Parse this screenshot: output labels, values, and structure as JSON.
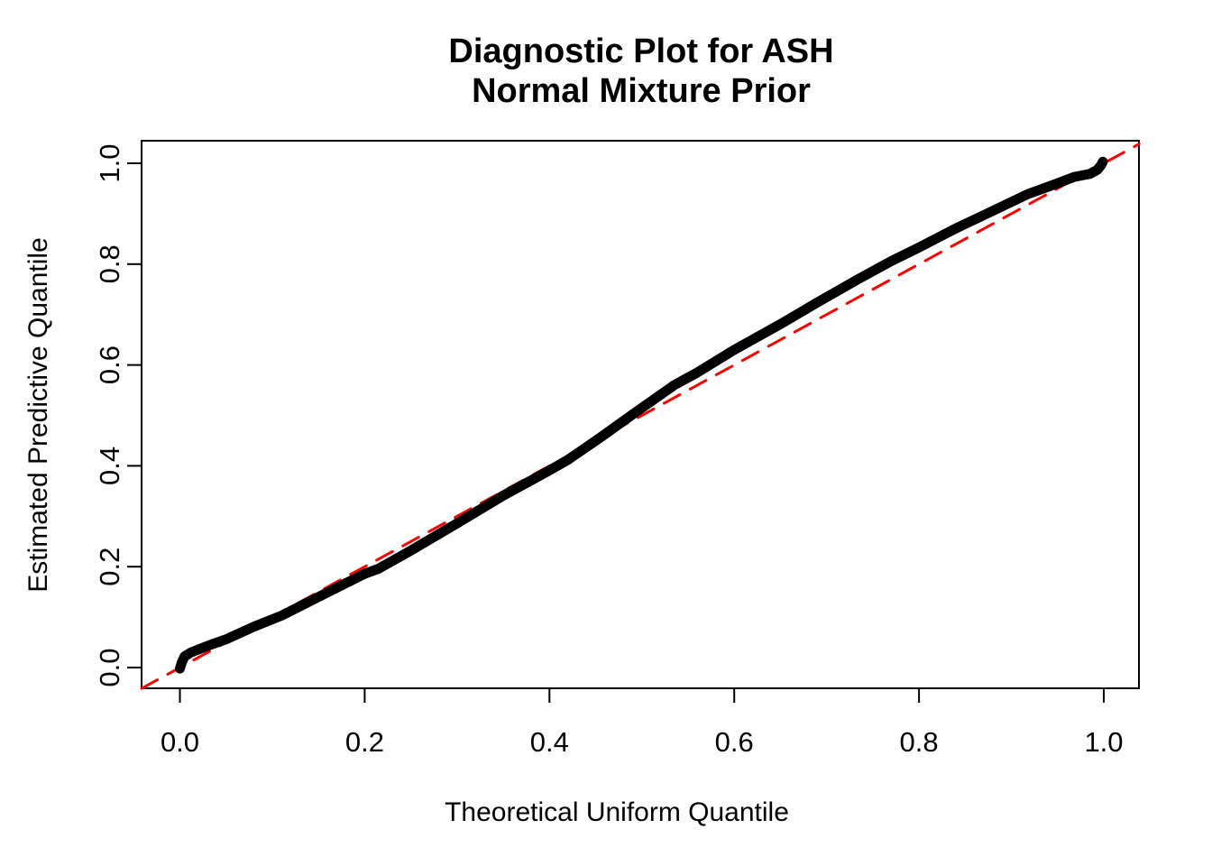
{
  "title": {
    "line1": "Diagnostic Plot for ASH",
    "line2": "Normal Mixture Prior"
  },
  "x_axis": {
    "label": "Theoretical Uniform Quantile",
    "tick_labels": [
      "0.0",
      "0.2",
      "0.4",
      "0.6",
      "0.8",
      "1.0"
    ]
  },
  "y_axis": {
    "label": "Estimated Predictive Quantile",
    "tick_labels": [
      "0.0",
      "0.2",
      "0.4",
      "0.6",
      "0.8",
      "1.0"
    ]
  },
  "colors": {
    "curve": "#000000",
    "reference_line": "#FF0000",
    "axis": "#000000",
    "background": "#FFFFFF"
  },
  "chart_data": {
    "type": "line",
    "title": "Diagnostic Plot for ASH / Normal Mixture Prior",
    "xlabel": "Theoretical Uniform Quantile",
    "ylabel": "Estimated Predictive Quantile",
    "xlim": [
      -0.0415,
      1.0385
    ],
    "ylim": [
      -0.0415,
      1.0435
    ],
    "x_ticks": [
      0.0,
      0.2,
      0.4,
      0.6,
      0.8,
      1.0
    ],
    "y_ticks": [
      0.0,
      0.2,
      0.4,
      0.6,
      0.8,
      1.0
    ],
    "grid": false,
    "legend": "none",
    "series": [
      {
        "name": "estimated-predictive-quantile-curve",
        "style": "solid",
        "color": "#000000",
        "linewidth": 11,
        "points": [
          [
            0.0,
            -0.002
          ],
          [
            0.002,
            0.01
          ],
          [
            0.005,
            0.022
          ],
          [
            0.012,
            0.03
          ],
          [
            0.03,
            0.043
          ],
          [
            0.05,
            0.056
          ],
          [
            0.08,
            0.081
          ],
          [
            0.11,
            0.103
          ],
          [
            0.15,
            0.14
          ],
          [
            0.2,
            0.186
          ],
          [
            0.215,
            0.196
          ],
          [
            0.25,
            0.232
          ],
          [
            0.3,
            0.286
          ],
          [
            0.35,
            0.341
          ],
          [
            0.4,
            0.391
          ],
          [
            0.42,
            0.412
          ],
          [
            0.455,
            0.456
          ],
          [
            0.49,
            0.502
          ],
          [
            0.535,
            0.56
          ],
          [
            0.56,
            0.585
          ],
          [
            0.6,
            0.63
          ],
          [
            0.65,
            0.681
          ],
          [
            0.69,
            0.724
          ],
          [
            0.733,
            0.769
          ],
          [
            0.77,
            0.806
          ],
          [
            0.8,
            0.833
          ],
          [
            0.84,
            0.871
          ],
          [
            0.87,
            0.897
          ],
          [
            0.918,
            0.939
          ],
          [
            0.945,
            0.957
          ],
          [
            0.968,
            0.973
          ],
          [
            0.985,
            0.979
          ],
          [
            0.993,
            0.987
          ],
          [
            0.997,
            0.996
          ],
          [
            0.999,
            1.003
          ]
        ]
      },
      {
        "name": "identity-reference-line",
        "style": "dashed",
        "color": "#FF0000",
        "linewidth": 3,
        "points": [
          [
            -0.0415,
            -0.0415
          ],
          [
            1.0383,
            1.0383
          ]
        ]
      }
    ]
  }
}
